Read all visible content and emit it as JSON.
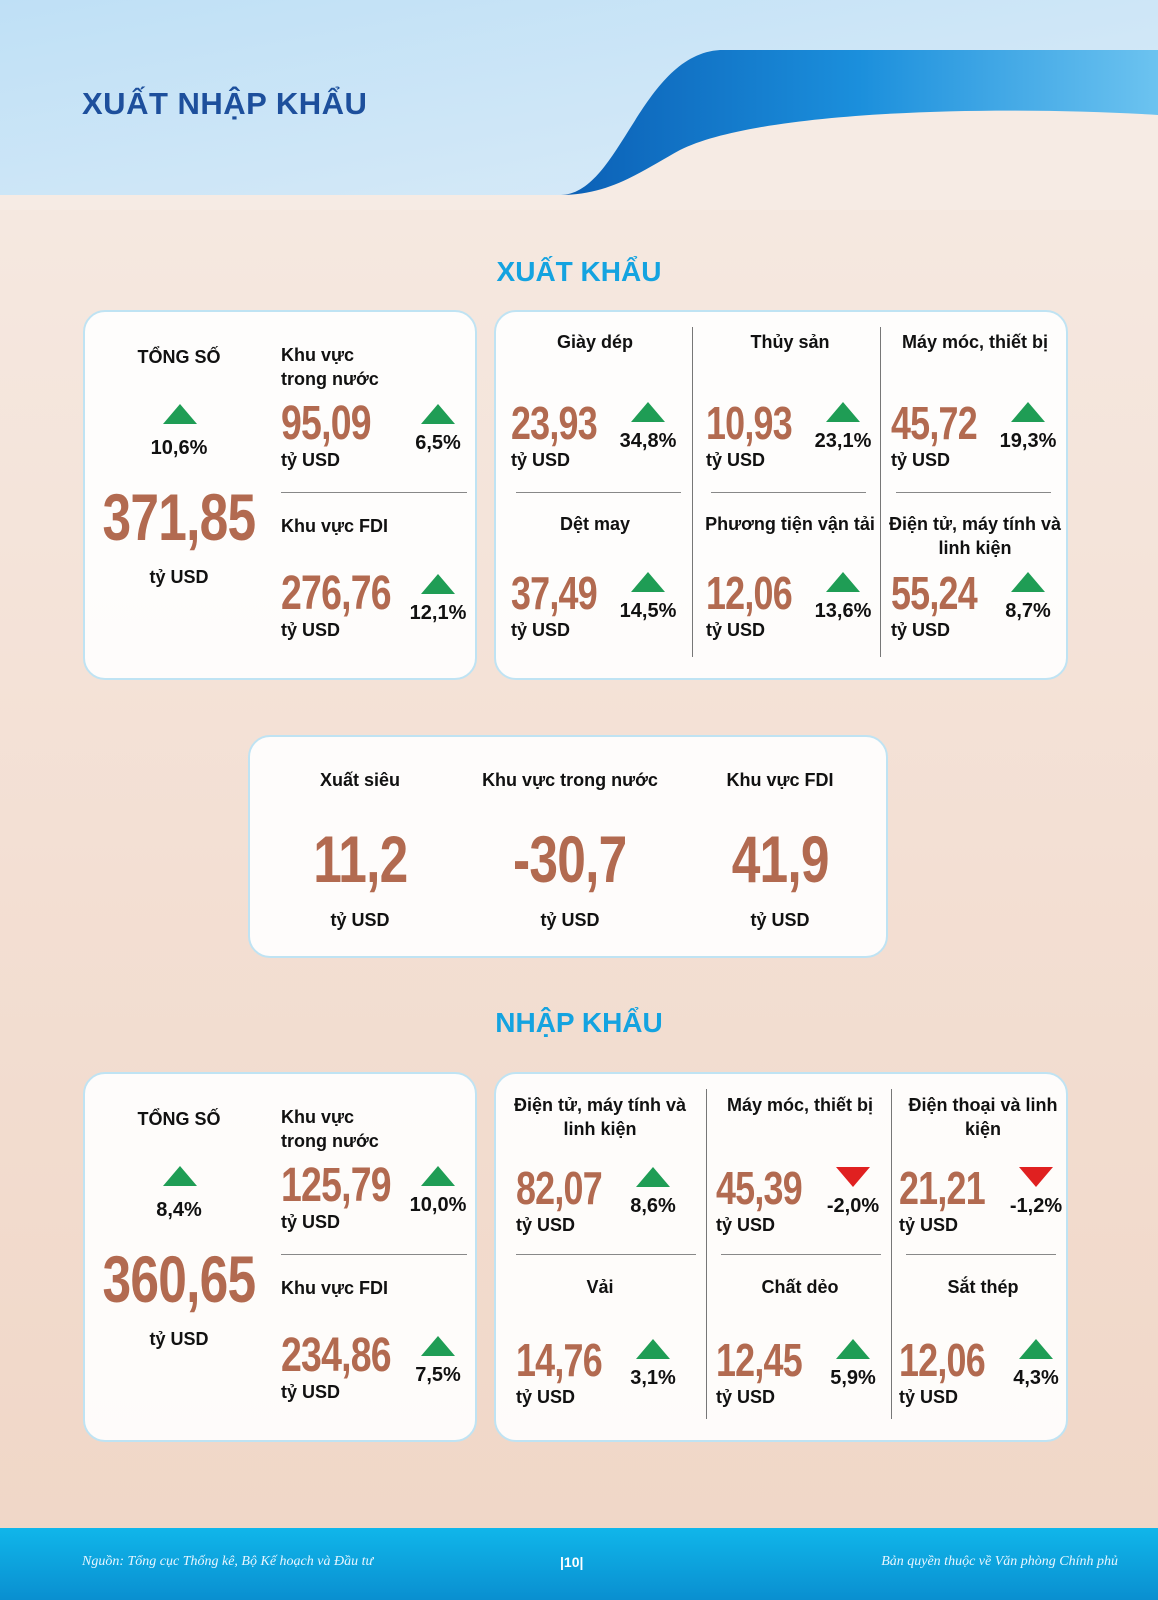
{
  "header": {
    "title": "XUẤT NHẬP KHẨU"
  },
  "export": {
    "title": "XUẤT KHẨU",
    "total": {
      "label": "TỔNG SỐ",
      "change": "10,6%",
      "direction": "up",
      "value": "371,85",
      "unit": "tỷ USD"
    },
    "domestic": {
      "label": "Khu vực trong nước",
      "value": "95,09",
      "unit": "tỷ USD",
      "change": "6,5%",
      "direction": "up"
    },
    "fdi": {
      "label": "Khu vực FDI",
      "value": "276,76",
      "unit": "tỷ USD",
      "change": "12,1%",
      "direction": "up"
    },
    "items": [
      {
        "label": "Giày dép",
        "value": "23,93",
        "unit": "tỷ USD",
        "change": "34,8%",
        "direction": "up"
      },
      {
        "label": "Thủy sản",
        "value": "10,93",
        "unit": "tỷ USD",
        "change": "23,1%",
        "direction": "up"
      },
      {
        "label": "Máy móc, thiết bị",
        "value": "45,72",
        "unit": "tỷ USD",
        "change": "19,3%",
        "direction": "up"
      },
      {
        "label": "Dệt may",
        "value": "37,49",
        "unit": "tỷ USD",
        "change": "14,5%",
        "direction": "up"
      },
      {
        "label": "Phương tiện vận tải",
        "value": "12,06",
        "unit": "tỷ USD",
        "change": "13,6%",
        "direction": "up"
      },
      {
        "label": "Điện tử, máy tính và linh kiện",
        "value": "55,24",
        "unit": "tỷ USD",
        "change": "8,7%",
        "direction": "up"
      }
    ]
  },
  "surplus": [
    {
      "label": "Xuất siêu",
      "value": "11,2",
      "unit": "tỷ USD"
    },
    {
      "label": "Khu vực trong nước",
      "value": "-30,7",
      "unit": "tỷ USD"
    },
    {
      "label": "Khu vực FDI",
      "value": "41,9",
      "unit": "tỷ USD"
    }
  ],
  "import": {
    "title": "NHẬP KHẨU",
    "total": {
      "label": "TỔNG SỐ",
      "change": "8,4%",
      "direction": "up",
      "value": "360,65",
      "unit": "tỷ USD"
    },
    "domestic": {
      "label": "Khu vực trong nước",
      "value": "125,79",
      "unit": "tỷ USD",
      "change": "10,0%",
      "direction": "up"
    },
    "fdi": {
      "label": "Khu vực FDI",
      "value": "234,86",
      "unit": "tỷ USD",
      "change": "7,5%",
      "direction": "up"
    },
    "items": [
      {
        "label": "Điện tử, máy tính và linh kiện",
        "value": "82,07",
        "unit": "tỷ USD",
        "change": "8,6%",
        "direction": "up"
      },
      {
        "label": "Máy móc, thiết bị",
        "value": "45,39",
        "unit": "tỷ USD",
        "change": "-2,0%",
        "direction": "down"
      },
      {
        "label": "Điện thoại và linh kiện",
        "value": "21,21",
        "unit": "tỷ USD",
        "change": "-1,2%",
        "direction": "down"
      },
      {
        "label": "Vải",
        "value": "14,76",
        "unit": "tỷ USD",
        "change": "3,1%",
        "direction": "up"
      },
      {
        "label": "Chất dẻo",
        "value": "12,45",
        "unit": "tỷ USD",
        "change": "5,9%",
        "direction": "up"
      },
      {
        "label": "Sắt thép",
        "value": "12,06",
        "unit": "tỷ USD",
        "change": "4,3%",
        "direction": "up"
      }
    ]
  },
  "footer": {
    "source": "Nguồn: Tổng cục Thống kê, Bộ Kế hoạch và Đầu tư",
    "page": "|10|",
    "copyright": "Bản quyền thuộc về Văn phòng Chính phủ"
  },
  "colors": {
    "value": "#b26a50",
    "up": "#1f9d55",
    "down": "#e02020",
    "section": "#14a3e0",
    "title": "#1d4f9c"
  }
}
